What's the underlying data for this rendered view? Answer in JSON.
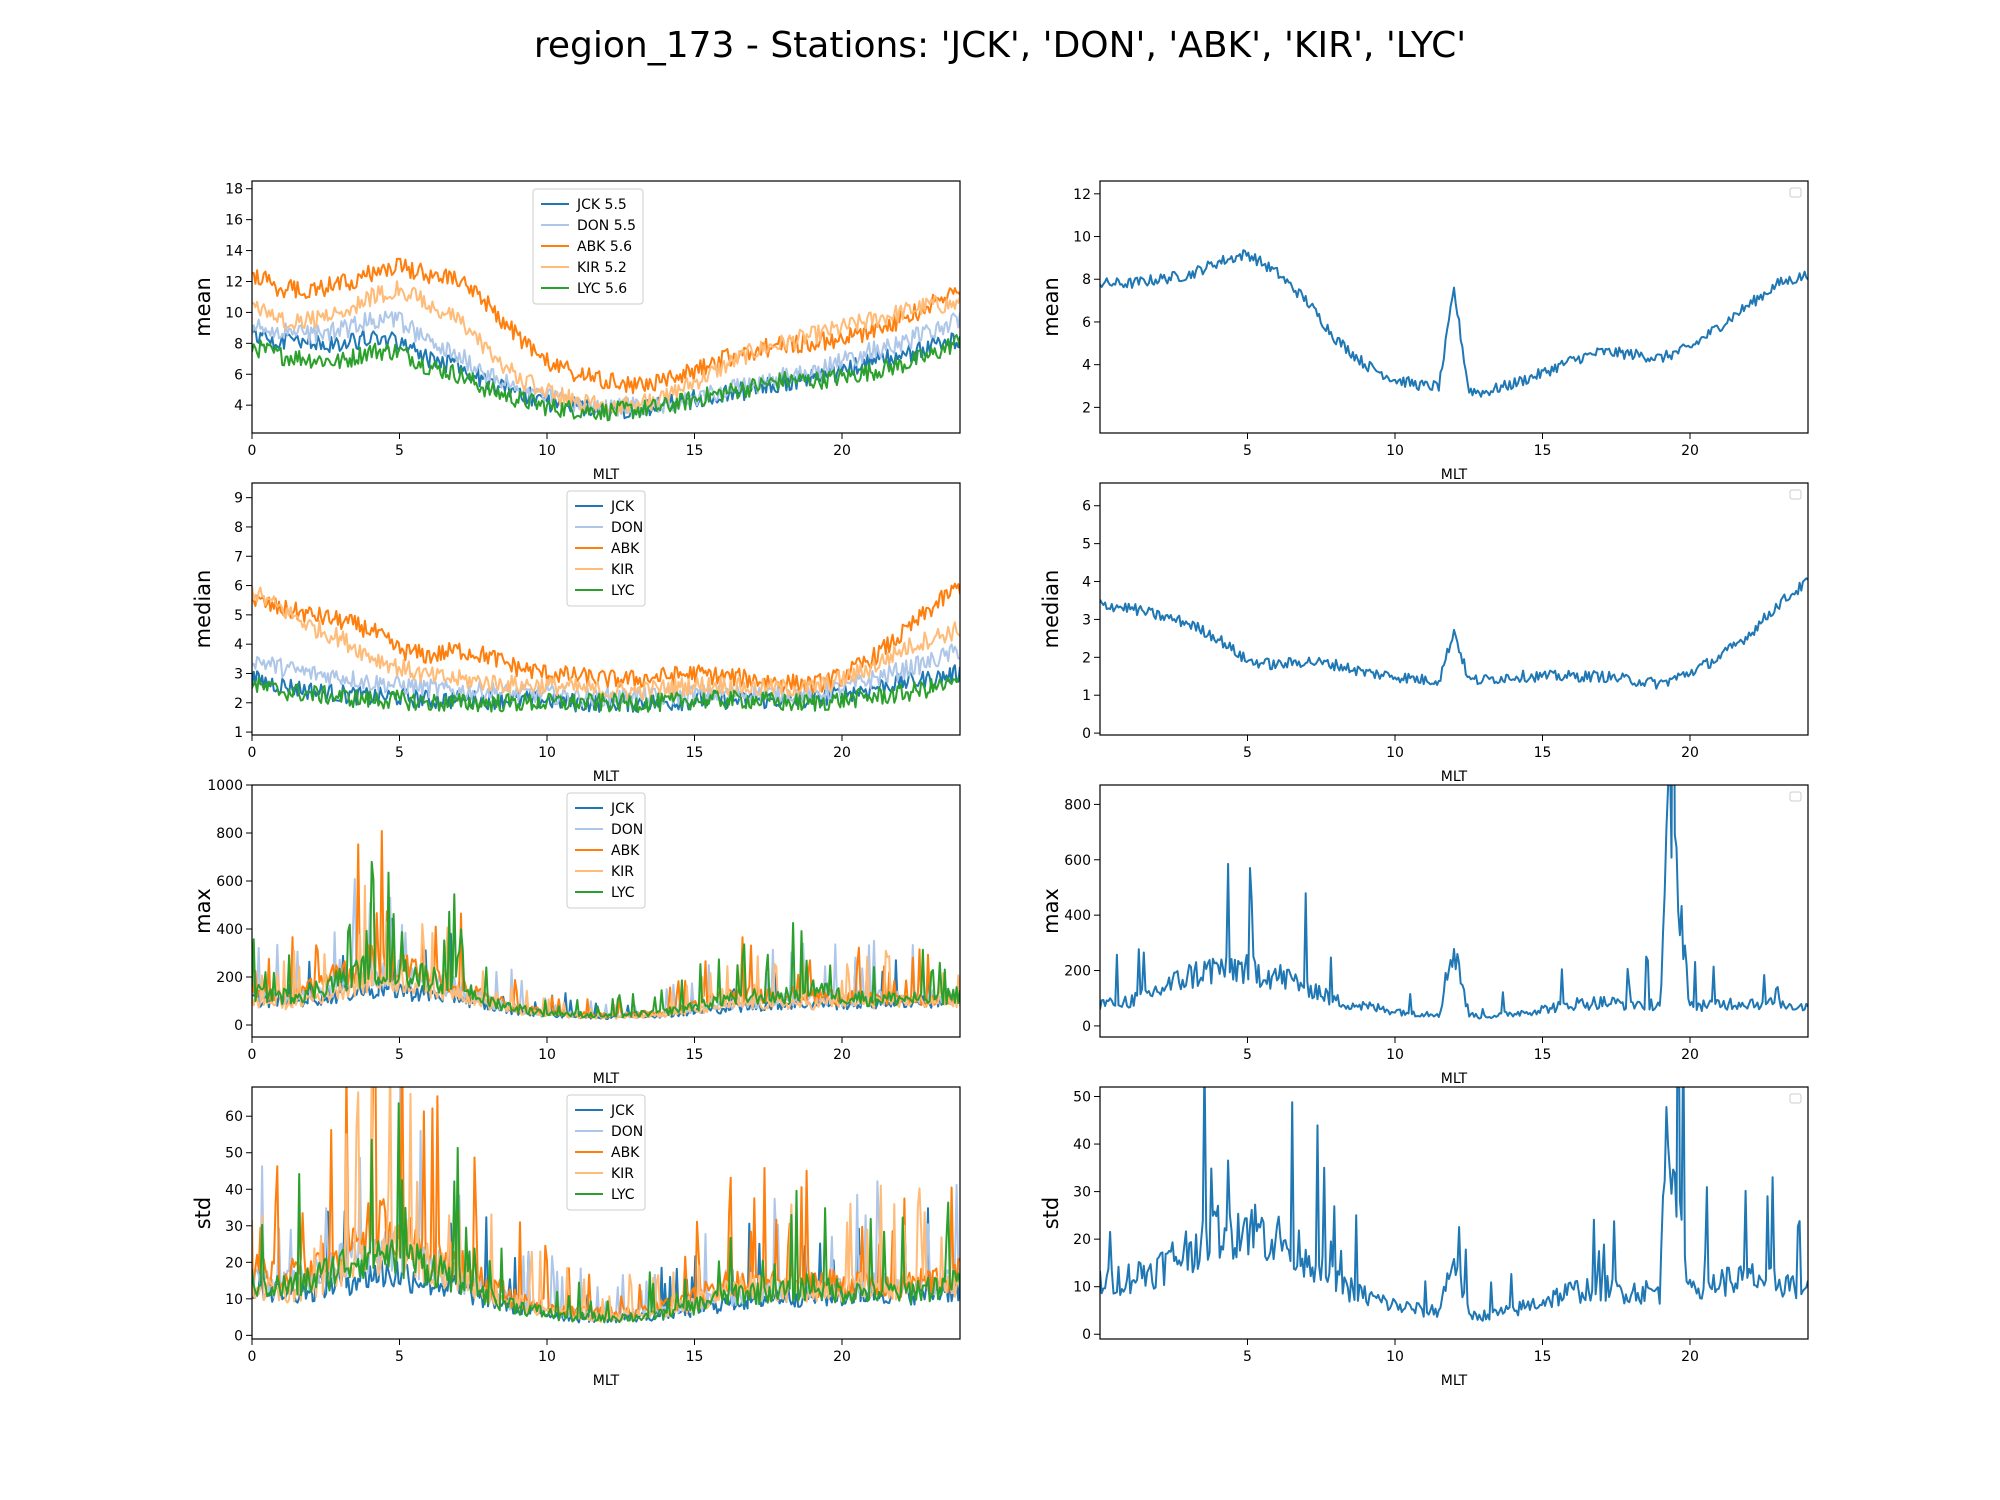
{
  "figure_title": "region_173 - Stations: 'JCK', 'DON', 'ABK', 'KIR', 'LYC'",
  "colors": {
    "JCK": "#1f77b4",
    "DON": "#aec7e8",
    "ABK": "#ff7f0e",
    "KIR": "#ffbb78",
    "LYC": "#2ca02c",
    "avg": "#1f77b4"
  },
  "chart_data": [
    {
      "type": "line",
      "panel": "left-mean",
      "xlabel": "MLT",
      "ylabel": "mean",
      "xlim": [
        0,
        24
      ],
      "ylim": [
        2.2,
        18.5
      ],
      "xticks": [
        0,
        5,
        10,
        15,
        20
      ],
      "yticks": [
        4,
        6,
        8,
        10,
        12,
        14,
        16,
        18
      ],
      "legend": [
        "JCK 5.5",
        "DON 5.5",
        "ABK 5.6",
        "KIR 5.2",
        "LYC 5.6"
      ],
      "legend_position": "top-center",
      "x": [
        0,
        1,
        2,
        3,
        4,
        5,
        6,
        7,
        8,
        9,
        10,
        11,
        12,
        13,
        14,
        15,
        16,
        17,
        18,
        19,
        20,
        21,
        22,
        23,
        24
      ],
      "series": [
        {
          "name": "JCK",
          "values": [
            8.5,
            8.2,
            8.0,
            7.8,
            8.5,
            8.0,
            7.0,
            6.5,
            5.5,
            4.8,
            4.2,
            3.9,
            3.7,
            3.8,
            4.0,
            4.4,
            4.8,
            5.0,
            5.5,
            5.8,
            6.2,
            6.8,
            7.2,
            7.8,
            8.2
          ]
        },
        {
          "name": "DON",
          "values": [
            9.0,
            8.8,
            8.6,
            8.8,
            9.5,
            9.5,
            8.0,
            7.2,
            6.0,
            5.0,
            4.5,
            4.0,
            3.8,
            3.9,
            4.1,
            4.5,
            5.0,
            5.3,
            5.8,
            6.2,
            6.8,
            7.5,
            8.0,
            8.8,
            9.5
          ]
        },
        {
          "name": "ABK",
          "values": [
            12.5,
            11.5,
            11.5,
            11.8,
            12.5,
            13.0,
            12.5,
            12.0,
            10.5,
            8.5,
            6.8,
            6.0,
            5.5,
            5.3,
            5.5,
            6.2,
            7.0,
            7.5,
            8.0,
            8.0,
            8.3,
            8.8,
            9.5,
            10.5,
            11.5
          ]
        },
        {
          "name": "KIR",
          "values": [
            10.5,
            9.5,
            9.5,
            10.0,
            11.0,
            11.5,
            10.5,
            9.5,
            7.5,
            5.8,
            4.8,
            4.3,
            4.0,
            4.0,
            4.5,
            5.5,
            6.5,
            7.5,
            8.0,
            8.5,
            9.0,
            9.5,
            10.0,
            10.5,
            10.5
          ]
        },
        {
          "name": "LYC",
          "values": [
            7.8,
            7.2,
            7.0,
            6.8,
            7.5,
            7.5,
            6.5,
            6.0,
            5.0,
            4.4,
            3.9,
            3.7,
            3.6,
            3.7,
            3.9,
            4.4,
            4.8,
            5.2,
            5.6,
            5.6,
            5.8,
            6.2,
            6.6,
            7.2,
            8.2
          ]
        }
      ]
    },
    {
      "type": "line",
      "panel": "right-mean",
      "xlabel": "MLT",
      "ylabel": "mean",
      "xlim": [
        0,
        24
      ],
      "ylim": [
        0.8,
        12.6
      ],
      "xticks": [
        5,
        10,
        15,
        20
      ],
      "yticks": [
        2,
        4,
        6,
        8,
        10,
        12
      ],
      "legend": [],
      "legend_position": "top-right",
      "x": [
        0,
        1,
        2,
        3,
        4,
        5,
        6,
        7,
        8,
        9,
        10,
        11,
        11.5,
        12,
        12.5,
        13,
        14,
        15,
        16,
        17,
        18,
        19,
        20,
        21,
        22,
        23,
        24
      ],
      "series": [
        {
          "values": [
            7.8,
            7.8,
            8.0,
            8.2,
            8.8,
            9.2,
            8.3,
            7.0,
            5.2,
            4.0,
            3.3,
            3.0,
            3.0,
            7.5,
            2.8,
            2.7,
            3.1,
            3.6,
            4.2,
            4.6,
            4.5,
            4.3,
            4.8,
            5.8,
            6.8,
            7.8,
            8.2
          ]
        }
      ]
    },
    {
      "type": "line",
      "panel": "left-median",
      "xlabel": "MLT",
      "ylabel": "median",
      "xlim": [
        0,
        24
      ],
      "ylim": [
        0.9,
        9.5
      ],
      "xticks": [
        0,
        5,
        10,
        15,
        20
      ],
      "yticks": [
        1,
        2,
        3,
        4,
        5,
        6,
        7,
        8,
        9
      ],
      "legend": [
        "JCK",
        "DON",
        "ABK",
        "KIR",
        "LYC"
      ],
      "legend_position": "top-center",
      "x": [
        0,
        1,
        2,
        3,
        4,
        5,
        6,
        7,
        8,
        9,
        10,
        11,
        12,
        13,
        14,
        15,
        16,
        17,
        18,
        19,
        20,
        21,
        22,
        23,
        24
      ],
      "series": [
        {
          "name": "JCK",
          "values": [
            2.8,
            2.6,
            2.4,
            2.3,
            2.2,
            2.2,
            2.1,
            2.1,
            2.1,
            2.1,
            2.1,
            2.0,
            2.0,
            2.0,
            2.0,
            2.1,
            2.1,
            2.1,
            2.1,
            2.1,
            2.3,
            2.5,
            2.7,
            2.8,
            3.0
          ]
        },
        {
          "name": "DON",
          "values": [
            3.5,
            3.2,
            3.0,
            2.9,
            2.7,
            2.6,
            2.5,
            2.4,
            2.4,
            2.3,
            2.3,
            2.2,
            2.2,
            2.2,
            2.2,
            2.3,
            2.3,
            2.3,
            2.3,
            2.3,
            2.5,
            2.8,
            3.1,
            3.4,
            3.8
          ]
        },
        {
          "name": "ABK",
          "values": [
            5.5,
            5.2,
            5.0,
            4.8,
            4.5,
            3.8,
            3.6,
            3.8,
            3.6,
            3.2,
            3.0,
            2.9,
            2.8,
            2.8,
            2.9,
            3.0,
            2.9,
            2.8,
            2.7,
            2.6,
            2.9,
            3.5,
            4.3,
            5.2,
            6.0
          ]
        },
        {
          "name": "KIR",
          "values": [
            5.8,
            5.2,
            4.6,
            4.2,
            3.6,
            3.2,
            2.9,
            2.8,
            2.7,
            2.6,
            2.6,
            2.5,
            2.4,
            2.4,
            2.5,
            2.6,
            2.6,
            2.5,
            2.5,
            2.5,
            2.8,
            3.2,
            3.8,
            4.2,
            4.5
          ]
        },
        {
          "name": "LYC",
          "values": [
            2.6,
            2.4,
            2.3,
            2.2,
            2.1,
            2.1,
            2.0,
            2.0,
            2.0,
            2.0,
            2.0,
            2.0,
            2.0,
            2.0,
            2.0,
            2.1,
            2.1,
            2.1,
            2.0,
            2.0,
            2.1,
            2.2,
            2.3,
            2.5,
            2.7
          ]
        }
      ]
    },
    {
      "type": "line",
      "panel": "right-median",
      "xlabel": "MLT",
      "ylabel": "median",
      "xlim": [
        0,
        24
      ],
      "ylim": [
        -0.05,
        6.6
      ],
      "xticks": [
        5,
        10,
        15,
        20
      ],
      "yticks": [
        0,
        1,
        2,
        3,
        4,
        5,
        6
      ],
      "legend": [],
      "legend_position": "top-right",
      "x": [
        0,
        1,
        2,
        3,
        4,
        5,
        6,
        7,
        8,
        9,
        10,
        11,
        11.5,
        12,
        12.5,
        13,
        14,
        15,
        16,
        17,
        18,
        19,
        20,
        21,
        22,
        23,
        24
      ],
      "series": [
        {
          "values": [
            3.4,
            3.3,
            3.1,
            2.9,
            2.5,
            1.9,
            1.8,
            1.9,
            1.8,
            1.6,
            1.5,
            1.4,
            1.4,
            2.7,
            1.4,
            1.4,
            1.5,
            1.5,
            1.5,
            1.5,
            1.4,
            1.3,
            1.6,
            2.0,
            2.6,
            3.4,
            4.0
          ]
        }
      ]
    },
    {
      "type": "line",
      "panel": "left-max",
      "xlabel": "MLT",
      "ylabel": "max",
      "xlim": [
        0,
        24
      ],
      "ylim": [
        -50,
        1000
      ],
      "xticks": [
        0,
        5,
        10,
        15,
        20
      ],
      "yticks": [
        0,
        200,
        400,
        600,
        800,
        1000
      ],
      "legend": [
        "JCK",
        "DON",
        "ABK",
        "KIR",
        "LYC"
      ],
      "legend_position": "top-center",
      "x": [
        0,
        1,
        2,
        3,
        4,
        5,
        6,
        7,
        8,
        9,
        10,
        11,
        12,
        13,
        14,
        15,
        16,
        17,
        18,
        19,
        20,
        21,
        22,
        23,
        24
      ],
      "series": [
        {
          "name": "JCK",
          "values": [
            110,
            100,
            110,
            130,
            150,
            150,
            130,
            120,
            80,
            60,
            45,
            40,
            35,
            40,
            45,
            55,
            70,
            80,
            90,
            90,
            90,
            95,
            100,
            100,
            110
          ]
        },
        {
          "name": "DON",
          "values": [
            130,
            120,
            130,
            170,
            220,
            220,
            180,
            160,
            100,
            70,
            50,
            45,
            40,
            45,
            50,
            70,
            90,
            100,
            110,
            110,
            110,
            120,
            120,
            120,
            130
          ]
        },
        {
          "name": "ABK",
          "values": [
            140,
            130,
            160,
            220,
            270,
            260,
            210,
            180,
            110,
            75,
            55,
            45,
            40,
            45,
            55,
            90,
            120,
            130,
            130,
            120,
            120,
            110,
            110,
            110,
            120
          ]
        },
        {
          "name": "KIR",
          "values": [
            100,
            90,
            110,
            150,
            190,
            190,
            160,
            140,
            90,
            60,
            45,
            40,
            35,
            40,
            45,
            60,
            80,
            90,
            90,
            90,
            95,
            95,
            100,
            100,
            100
          ]
        },
        {
          "name": "LYC",
          "values": [
            140,
            120,
            140,
            190,
            240,
            230,
            200,
            170,
            100,
            70,
            50,
            45,
            40,
            45,
            55,
            80,
            110,
            120,
            120,
            160,
            120,
            110,
            110,
            110,
            130
          ]
        }
      ]
    },
    {
      "type": "line",
      "panel": "right-max",
      "xlabel": "MLT",
      "ylabel": "max",
      "xlim": [
        0,
        24
      ],
      "ylim": [
        -40,
        870
      ],
      "xticks": [
        5,
        10,
        15,
        20
      ],
      "yticks": [
        0,
        200,
        400,
        600,
        800
      ],
      "legend": [],
      "legend_position": "top-right",
      "x": [
        0,
        1,
        2,
        3,
        4,
        5,
        6,
        7,
        8,
        9,
        10,
        11,
        11.5,
        12,
        12.5,
        13,
        14,
        15,
        16,
        17,
        18,
        19,
        19.3,
        20,
        21,
        22,
        23,
        24
      ],
      "series": [
        {
          "values": [
            80,
            90,
            130,
            180,
            210,
            210,
            180,
            150,
            90,
            70,
            55,
            45,
            45,
            300,
            40,
            35,
            45,
            60,
            80,
            85,
            80,
            80,
            840,
            75,
            80,
            85,
            80,
            70
          ]
        }
      ]
    },
    {
      "type": "line",
      "panel": "left-std",
      "xlabel": "MLT",
      "ylabel": "std",
      "xlim": [
        0,
        24
      ],
      "ylim": [
        -1,
        68
      ],
      "xticks": [
        0,
        5,
        10,
        15,
        20
      ],
      "yticks": [
        0,
        10,
        20,
        30,
        40,
        50,
        60
      ],
      "legend": [
        "JCK",
        "DON",
        "ABK",
        "KIR",
        "LYC"
      ],
      "legend_position": "top-center",
      "x": [
        0,
        1,
        2,
        3,
        4,
        5,
        6,
        7,
        8,
        9,
        10,
        11,
        12,
        13,
        14,
        15,
        16,
        17,
        18,
        19,
        20,
        21,
        22,
        23,
        24
      ],
      "series": [
        {
          "name": "JCK",
          "values": [
            13,
            12,
            13,
            15,
            17,
            17,
            15,
            13,
            10,
            8,
            6,
            5,
            5,
            5,
            6,
            7,
            9,
            10,
            11,
            11,
            11,
            12,
            12,
            12,
            13
          ]
        },
        {
          "name": "DON",
          "values": [
            16,
            14,
            16,
            20,
            24,
            24,
            20,
            17,
            12,
            9,
            7,
            6,
            5,
            6,
            7,
            9,
            11,
            12,
            13,
            13,
            13,
            14,
            14,
            15,
            16
          ]
        },
        {
          "name": "ABK",
          "values": [
            18,
            16,
            18,
            24,
            30,
            30,
            25,
            21,
            14,
            10,
            8,
            7,
            6,
            7,
            8,
            11,
            14,
            15,
            15,
            15,
            14,
            14,
            14,
            15,
            17
          ]
        },
        {
          "name": "KIR",
          "values": [
            14,
            12,
            14,
            18,
            23,
            24,
            20,
            17,
            12,
            9,
            7,
            6,
            5,
            6,
            7,
            9,
            12,
            14,
            13,
            13,
            13,
            14,
            14,
            14,
            14
          ]
        },
        {
          "name": "LYC",
          "values": [
            15,
            13,
            15,
            19,
            23,
            22,
            19,
            16,
            11,
            8,
            6,
            5,
            5,
            5,
            6,
            8,
            11,
            12,
            12,
            14,
            12,
            12,
            12,
            13,
            15
          ]
        }
      ]
    },
    {
      "type": "line",
      "panel": "right-std",
      "xlabel": "MLT",
      "ylabel": "std",
      "xlim": [
        0,
        24
      ],
      "ylim": [
        -1,
        52
      ],
      "xticks": [
        5,
        10,
        15,
        20
      ],
      "yticks": [
        0,
        10,
        20,
        30,
        40,
        50
      ],
      "legend": [],
      "legend_position": "top-right",
      "x": [
        0,
        1,
        2,
        3,
        4,
        5,
        6,
        7,
        8,
        9,
        10,
        11,
        11.5,
        12,
        12.5,
        13,
        14,
        15,
        16,
        17,
        18,
        19,
        19.2,
        20,
        21,
        22,
        23,
        24
      ],
      "series": [
        {
          "values": [
            11,
            12,
            14,
            18,
            22,
            23,
            20,
            17,
            11,
            8,
            6,
            5,
            5,
            17,
            4,
            4,
            5,
            7,
            9,
            10,
            9,
            9,
            50,
            10,
            11,
            12,
            11,
            10
          ]
        }
      ]
    }
  ]
}
